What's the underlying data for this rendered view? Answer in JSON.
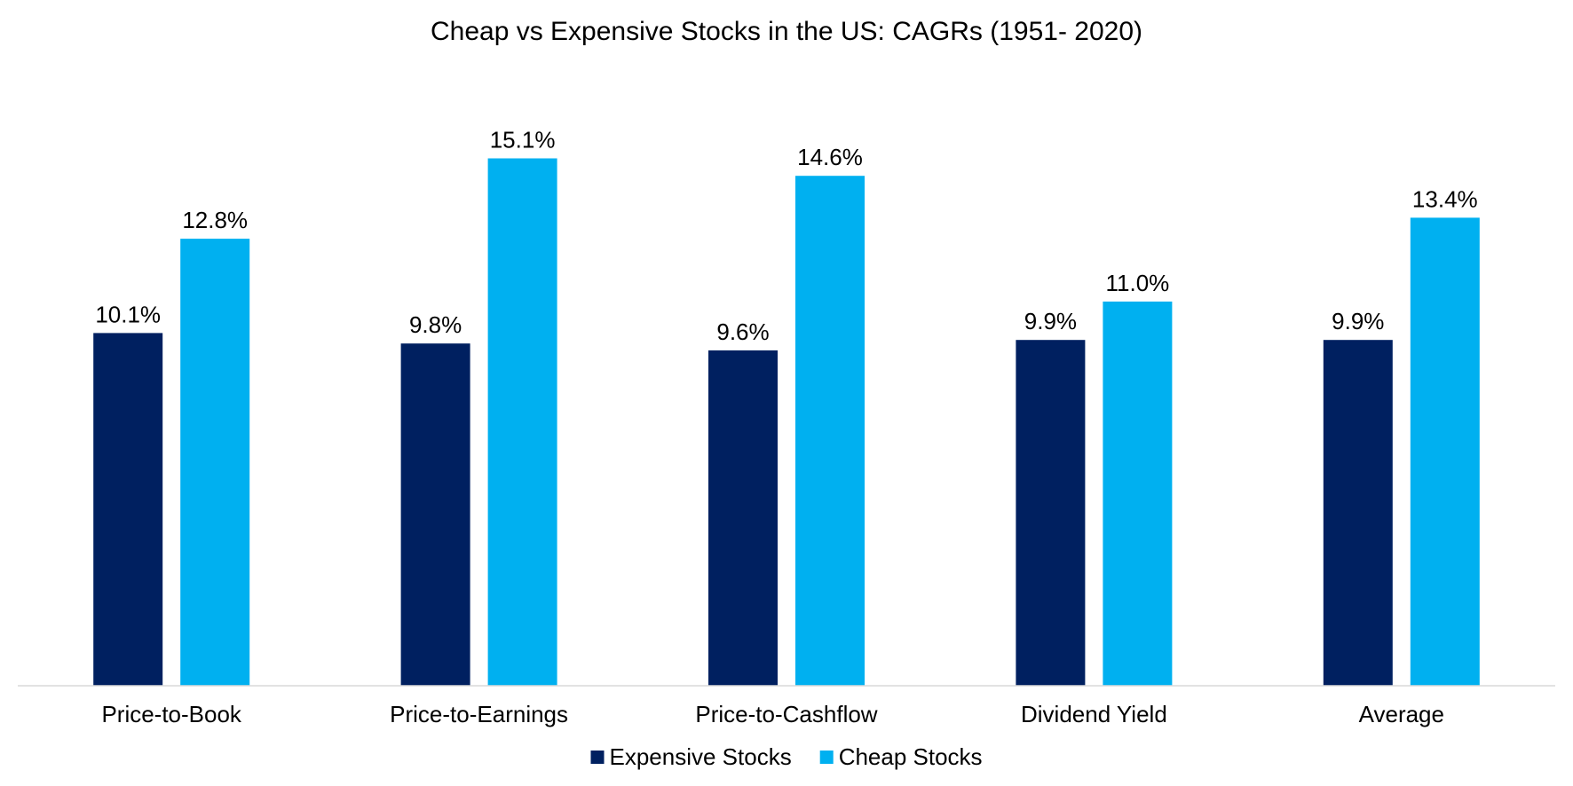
{
  "chart_data": {
    "type": "bar",
    "title": "Cheap vs Expensive Stocks in the US: CAGRs (1951- 2020)",
    "xlabel": "",
    "ylabel": "",
    "categories": [
      "Price-to-Book",
      "Price-to-Earnings",
      "Price-to-Cashflow",
      "Dividend Yield",
      "Average"
    ],
    "series": [
      {
        "name": "Expensive Stocks",
        "color": "#002060",
        "values": [
          10.1,
          9.8,
          9.6,
          9.9,
          9.9
        ],
        "labels": [
          "10.1%",
          "9.8%",
          "9.6%",
          "9.9%",
          "9.9%"
        ]
      },
      {
        "name": "Cheap Stocks",
        "color": "#00B0F0",
        "values": [
          12.8,
          15.1,
          14.6,
          11.0,
          13.4
        ],
        "labels": [
          "12.8%",
          "15.1%",
          "14.6%",
          "11.0%",
          "13.4%"
        ]
      }
    ],
    "ylim": [
      0,
      17
    ],
    "grid": false,
    "y_axis_visible": false,
    "legend": "bottom-center",
    "axis_color": "#D9D9D9"
  }
}
